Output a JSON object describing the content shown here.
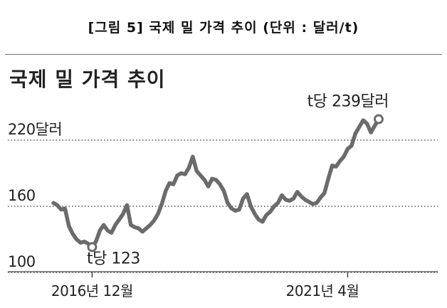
{
  "caption": "[그림 5] 국제 밀 가격 추이 (단위 : 달러/t)",
  "chart_data": {
    "type": "line",
    "title": "국제 밀 가격 추이",
    "y_ticks": [
      {
        "value": 220,
        "label": "220달러"
      },
      {
        "value": 160,
        "label": "160"
      },
      {
        "value": 100,
        "label": "100"
      }
    ],
    "ylim": [
      100,
      240
    ],
    "x_ticks": [
      {
        "index": 10,
        "label": "2016년 12월"
      },
      {
        "index": 76,
        "label": "2021년 4월"
      }
    ],
    "series": [
      {
        "color": "#6b6b6b",
        "values": [
          163,
          161,
          157,
          158,
          142,
          135,
          130,
          127,
          128,
          126,
          123,
          128,
          138,
          143,
          138,
          136,
          143,
          148,
          153,
          161,
          143,
          141,
          140,
          137,
          140,
          143,
          147,
          153,
          162,
          174,
          181,
          180,
          188,
          190,
          189,
          195,
          205,
          192,
          188,
          184,
          178,
          185,
          184,
          180,
          174,
          163,
          158,
          156,
          157,
          167,
          171,
          160,
          153,
          148,
          146,
          152,
          155,
          160,
          163,
          170,
          166,
          165,
          167,
          173,
          169,
          166,
          164,
          162,
          163,
          168,
          172,
          185,
          197,
          196,
          201,
          205,
          212,
          215,
          226,
          232,
          238,
          235,
          227,
          233,
          239
        ]
      }
    ],
    "annotations": [
      {
        "index": 10,
        "value": 123,
        "text": "t당 123"
      },
      {
        "index": 84,
        "value": 239,
        "text": "t당 239달러"
      }
    ]
  }
}
